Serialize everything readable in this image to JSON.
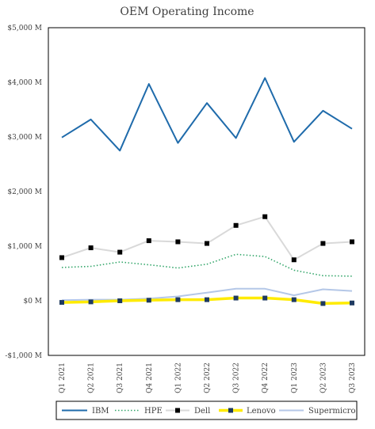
{
  "chart_data": {
    "type": "line",
    "title": "OEM Operating Income",
    "xlabel": "",
    "ylabel": "",
    "categories": [
      "Q1 2021",
      "Q2 2021",
      "Q3 2021",
      "Q4 2021",
      "Q1 2022",
      "Q2 2022",
      "Q3 2022",
      "Q4 2022",
      "Q1 2023",
      "Q2 2023",
      "Q3 2023"
    ],
    "ylim": [
      -1000,
      5000
    ],
    "yticks": [
      5000,
      4000,
      3000,
      2000,
      1000,
      0,
      -1000
    ],
    "ytick_labels": [
      "$5,000 M",
      "$4,000 M",
      "$3,000 M",
      "$2,000 M",
      "$1,000 M",
      "$0 M",
      "-$1,000 M"
    ],
    "grid": false,
    "legend_position": "bottom",
    "series": [
      {
        "name": "IBM",
        "color": "#1f6bab",
        "style": "solid",
        "values": [
          2990,
          3320,
          2750,
          3970,
          2890,
          3620,
          2980,
          4080,
          2910,
          3480,
          3150
        ]
      },
      {
        "name": "HPE",
        "color": "#33a66a",
        "style": "dotted",
        "values": [
          610,
          630,
          710,
          660,
          600,
          670,
          850,
          810,
          560,
          460,
          450
        ]
      },
      {
        "name": "Dell",
        "color": "#d9d9d9",
        "style": "solid-square-markers",
        "marker_color": "#000000",
        "values": [
          790,
          970,
          890,
          1100,
          1080,
          1050,
          1380,
          1540,
          750,
          1050,
          1080
        ]
      },
      {
        "name": "Lenovo",
        "color": "#ffeb00",
        "style": "thick-square-markers",
        "marker_color": "#1f3a5f",
        "values": [
          -30,
          -20,
          0,
          10,
          20,
          20,
          50,
          50,
          20,
          -50,
          -40
        ]
      },
      {
        "name": "Supermicro",
        "color": "#b4c7e7",
        "style": "solid",
        "values": [
          10,
          20,
          20,
          40,
          80,
          150,
          220,
          220,
          100,
          210,
          180
        ]
      }
    ]
  }
}
